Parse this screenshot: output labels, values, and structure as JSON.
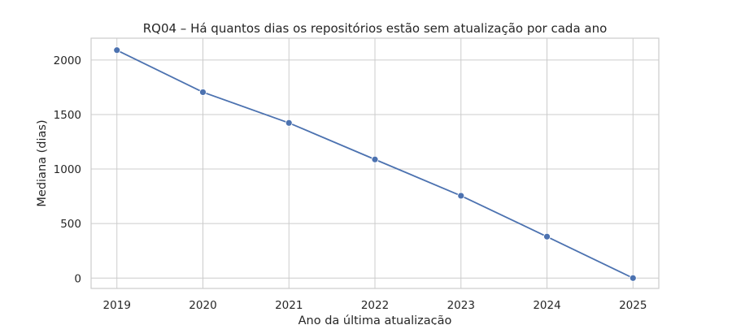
{
  "chart_data": {
    "type": "line",
    "title": "RQ04 – Há quantos dias os repositórios estão sem atualização por cada ano",
    "xlabel": "Ano da última atualização",
    "ylabel": "Mediana (dias)",
    "x": [
      2019,
      2020,
      2021,
      2022,
      2023,
      2024,
      2025
    ],
    "x_tick_labels": [
      "2019",
      "2020",
      "2021",
      "2022",
      "2023",
      "2024",
      "2025"
    ],
    "y_ticks": [
      0,
      500,
      1000,
      1500,
      2000
    ],
    "y_tick_labels": [
      "0",
      "500",
      "1000",
      "1500",
      "2000"
    ],
    "xlim": [
      2018.7,
      2025.3
    ],
    "ylim": [
      -95,
      2200
    ],
    "series": [
      {
        "values": [
          2090,
          1705,
          1423,
          1088,
          755,
          380,
          0
        ]
      }
    ],
    "grid": true,
    "colors": {
      "series": "#4c72b0",
      "grid": "#cccccc"
    }
  }
}
